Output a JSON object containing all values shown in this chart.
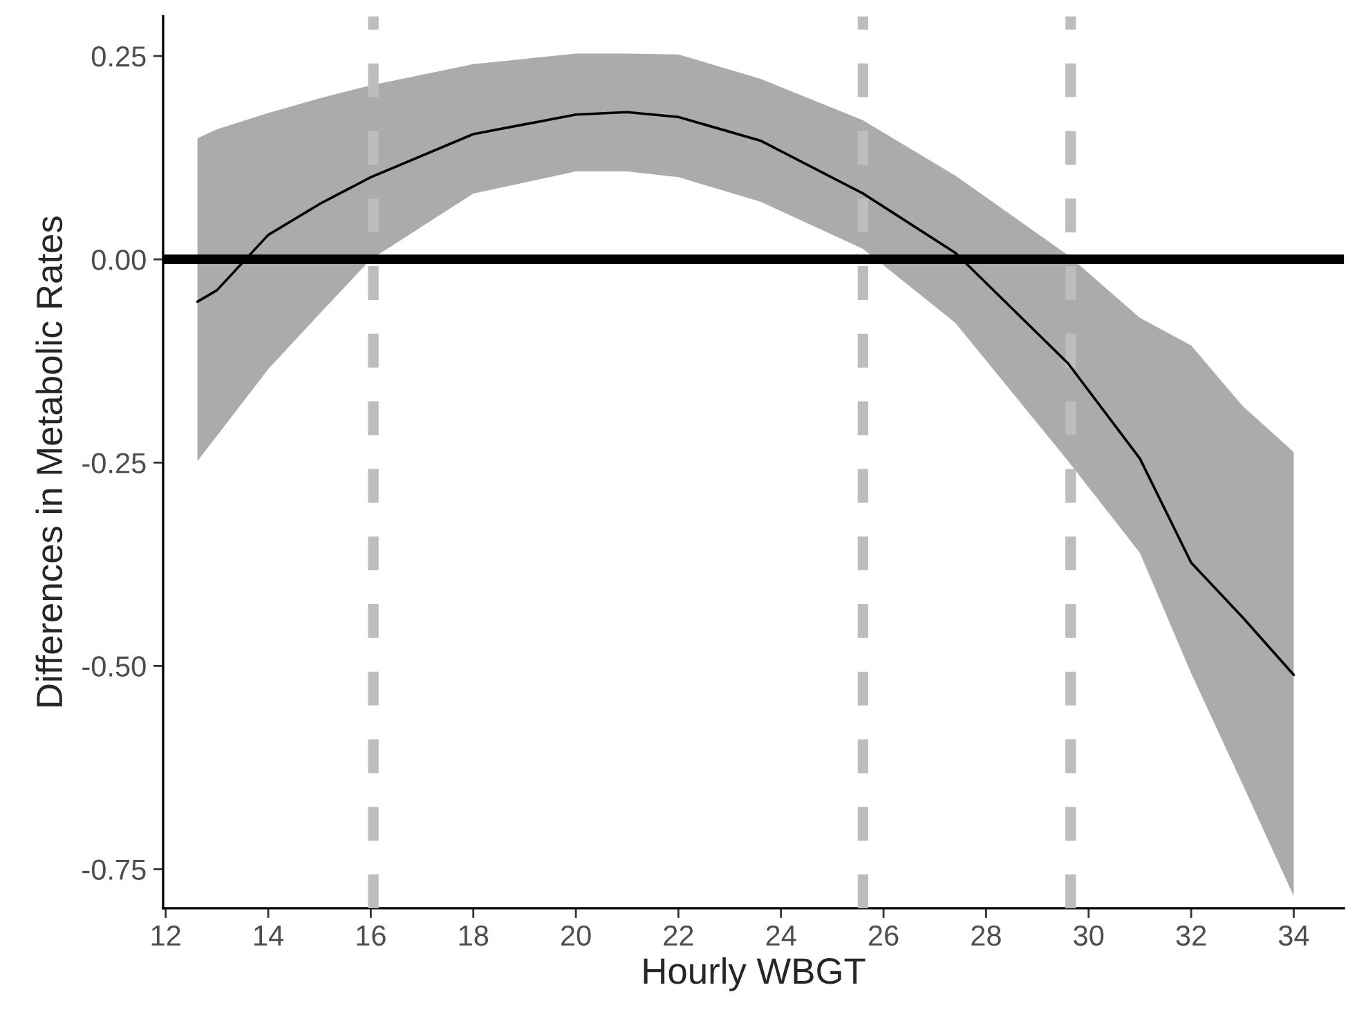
{
  "chart_data": {
    "type": "line",
    "xlabel": "Hourly WBGT",
    "ylabel": "Differences in Metabolic Rates",
    "xlim": [
      11.95,
      34.98
    ],
    "ylim": [
      -0.798,
      0.299
    ],
    "xticks": [
      12,
      14,
      16,
      18,
      20,
      22,
      24,
      26,
      28,
      30,
      32,
      34
    ],
    "yticks": [
      {
        "value": 0.25,
        "label": "0.25"
      },
      {
        "value": 0,
        "label": "0.00"
      },
      {
        "value": -0.25,
        "label": "-0.25"
      },
      {
        "value": -0.5,
        "label": "-0.50"
      },
      {
        "value": -0.75,
        "label": "-0.75"
      }
    ],
    "grid": false,
    "legend": false,
    "marker": "none",
    "line_style": "solid",
    "series": [
      {
        "color": "#000000",
        "x": [
          12.62,
          13,
          14,
          15,
          16,
          18,
          20,
          21,
          22,
          23.6,
          25.6,
          27.4,
          29.6,
          31,
          32,
          33,
          34
        ],
        "values": [
          -0.052,
          -0.038,
          0.03,
          0.068,
          0.101,
          0.154,
          0.178,
          0.181,
          0.175,
          0.146,
          0.081,
          0.008,
          -0.128,
          -0.245,
          -0.373,
          -0.44,
          -0.511
        ],
        "lower": [
          -0.248,
          -0.217,
          -0.135,
          -0.067,
          0.0,
          0.081,
          0.108,
          0.108,
          0.101,
          0.071,
          0.013,
          -0.078,
          -0.248,
          -0.361,
          -0.509,
          -0.645,
          -0.783
        ],
        "upper": [
          0.149,
          0.16,
          0.18,
          0.198,
          0.214,
          0.24,
          0.253,
          0.253,
          0.252,
          0.222,
          0.171,
          0.103,
          0.005,
          -0.072,
          -0.106,
          -0.18,
          -0.237
        ]
      }
    ],
    "ref_lines": [
      {
        "axis": "y",
        "value": 0,
        "color": "#000000",
        "line_style": "solid"
      },
      {
        "axis": "x",
        "value": 16.05,
        "color": "#bdbdbd",
        "line_style": "dashed"
      },
      {
        "axis": "x",
        "value": 25.6,
        "color": "#bdbdbd",
        "line_style": "dashed"
      },
      {
        "axis": "x",
        "value": 29.65,
        "color": "#bdbdbd",
        "line_style": "dashed"
      }
    ]
  }
}
